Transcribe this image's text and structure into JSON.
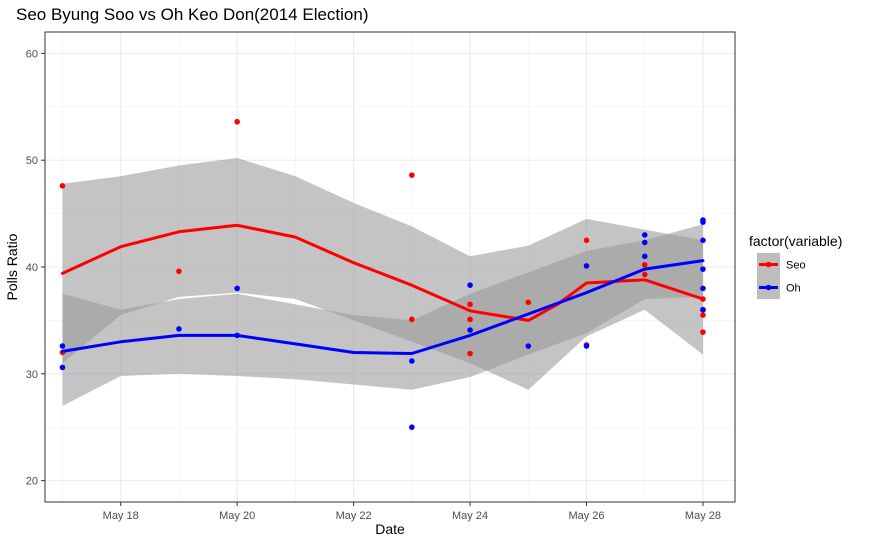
{
  "chart_data": {
    "type": "scatter",
    "title": "Seo Byung Soo vs Oh Keo Don(2014 Election)",
    "xlabel": "Date",
    "ylabel": "Polls Ratio",
    "xlim": [
      16.7,
      28.55
    ],
    "ylim": [
      18.0,
      62.0
    ],
    "x_ticks": [
      {
        "value": 18,
        "label": "May 18"
      },
      {
        "value": 20,
        "label": "May 20"
      },
      {
        "value": 22,
        "label": "May 22"
      },
      {
        "value": 24,
        "label": "May 24"
      },
      {
        "value": 26,
        "label": "May 26"
      },
      {
        "value": 28,
        "label": "May 28"
      }
    ],
    "y_ticks": [
      {
        "value": 20,
        "label": "20"
      },
      {
        "value": 30,
        "label": "30"
      },
      {
        "value": 40,
        "label": "40"
      },
      {
        "value": 50,
        "label": "50"
      },
      {
        "value": 60,
        "label": "60"
      }
    ],
    "grid": true,
    "legend": {
      "title": "factor(variable)",
      "position": "right"
    },
    "series": [
      {
        "name": "Seo",
        "color": "#ff0000",
        "points": [
          [
            17,
            47.6
          ],
          [
            17,
            32.0
          ],
          [
            19,
            39.6
          ],
          [
            20,
            53.6
          ],
          [
            23,
            48.6
          ],
          [
            23,
            35.1
          ],
          [
            24,
            36.5
          ],
          [
            24,
            35.1
          ],
          [
            24,
            31.9
          ],
          [
            25,
            36.7
          ],
          [
            26,
            42.5
          ],
          [
            26,
            32.7
          ],
          [
            27,
            40.2
          ],
          [
            27,
            39.3
          ],
          [
            28,
            37.0
          ],
          [
            28,
            35.5
          ],
          [
            28,
            33.9
          ],
          [
            28,
            36.0
          ]
        ],
        "smooth": [
          [
            17,
            39.4
          ],
          [
            18,
            41.9
          ],
          [
            19,
            43.3
          ],
          [
            20,
            43.9
          ],
          [
            21,
            42.8
          ],
          [
            22,
            40.4
          ],
          [
            23,
            38.3
          ],
          [
            24,
            35.9
          ],
          [
            25,
            35.0
          ],
          [
            25.5,
            36.5
          ],
          [
            26,
            38.5
          ],
          [
            27,
            38.8
          ],
          [
            28,
            37.0
          ]
        ],
        "band_upper": [
          [
            17,
            47.8
          ],
          [
            18,
            48.5
          ],
          [
            19,
            49.5
          ],
          [
            20,
            50.2
          ],
          [
            21,
            48.5
          ],
          [
            22,
            46.0
          ],
          [
            23,
            43.8
          ],
          [
            24,
            41.0
          ],
          [
            25,
            42.0
          ],
          [
            26,
            44.5
          ],
          [
            27,
            43.5
          ],
          [
            28,
            42.5
          ]
        ],
        "band_lower": [
          [
            17,
            31.0
          ],
          [
            18,
            35.5
          ],
          [
            19,
            37.2
          ],
          [
            20,
            37.6
          ],
          [
            21,
            37.0
          ],
          [
            22,
            35.0
          ],
          [
            23,
            33.0
          ],
          [
            24,
            31.0
          ],
          [
            25,
            28.5
          ],
          [
            26,
            33.5
          ],
          [
            27,
            36.0
          ],
          [
            28,
            31.8
          ]
        ]
      },
      {
        "name": "Oh",
        "color": "#0000ff",
        "points": [
          [
            17,
            32.6
          ],
          [
            17,
            30.6
          ],
          [
            19,
            34.2
          ],
          [
            20,
            38.0
          ],
          [
            20,
            33.6
          ],
          [
            23,
            31.2
          ],
          [
            23,
            25.0
          ],
          [
            24,
            38.3
          ],
          [
            24,
            34.1
          ],
          [
            25,
            32.6
          ],
          [
            26,
            40.1
          ],
          [
            26,
            32.6
          ],
          [
            27,
            43.0
          ],
          [
            27,
            42.3
          ],
          [
            27,
            41.0
          ],
          [
            28,
            44.4
          ],
          [
            28,
            44.2
          ],
          [
            28,
            42.5
          ],
          [
            28,
            39.8
          ],
          [
            28,
            38.0
          ],
          [
            28,
            36.0
          ]
        ],
        "smooth": [
          [
            17,
            32.1
          ],
          [
            18,
            33.0
          ],
          [
            19,
            33.6
          ],
          [
            20,
            33.6
          ],
          [
            21,
            32.8
          ],
          [
            22,
            32.0
          ],
          [
            23,
            31.9
          ],
          [
            24,
            33.6
          ],
          [
            25,
            35.6
          ],
          [
            26,
            37.6
          ],
          [
            27,
            39.8
          ],
          [
            28,
            40.6
          ]
        ],
        "band_upper": [
          [
            17,
            37.5
          ],
          [
            18,
            36.0
          ],
          [
            19,
            37.0
          ],
          [
            20,
            37.5
          ],
          [
            21,
            36.5
          ],
          [
            22,
            35.5
          ],
          [
            23,
            35.0
          ],
          [
            24,
            37.5
          ],
          [
            25,
            39.5
          ],
          [
            26,
            41.5
          ],
          [
            27,
            42.5
          ],
          [
            28,
            44.0
          ]
        ],
        "band_lower": [
          [
            17,
            27.0
          ],
          [
            18,
            29.8
          ],
          [
            19,
            30.0
          ],
          [
            20,
            29.8
          ],
          [
            21,
            29.5
          ],
          [
            22,
            29.0
          ],
          [
            23,
            28.5
          ],
          [
            24,
            29.7
          ],
          [
            25,
            31.8
          ],
          [
            26,
            33.8
          ],
          [
            27,
            37.0
          ],
          [
            28,
            37.2
          ]
        ]
      }
    ]
  }
}
